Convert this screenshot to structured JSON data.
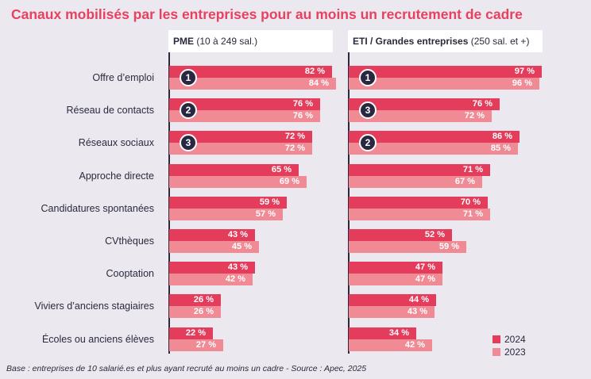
{
  "title": "Canaux mobilisés par les entreprises pour au moins un recrutement de cadre",
  "footnote": "Base : entreprises de 10 salarié.es et plus ayant recruté au moins un cadre  - Source : Apec, 2025",
  "colors": {
    "s2024": "#e43d5c",
    "s2023": "#f08b96",
    "rank": "#2a2840",
    "title": "#e8405f"
  },
  "chart_data": {
    "type": "bar",
    "orientation": "horizontal",
    "title": "Canaux mobilisés par les entreprises pour au moins un recrutement de cadre",
    "categories": [
      "Offre d’emploi",
      "Réseau de contacts",
      "Réseaux sociaux",
      "Approche directe",
      "Candidatures spontanées",
      "CVthèques",
      "Cooptation",
      "Viviers d’anciens stagiaires",
      "Écoles ou anciens élèves"
    ],
    "legend": [
      "2024",
      "2023"
    ],
    "legend_position": "bottom-right",
    "panels": [
      {
        "name": "PME",
        "subtitle": "(10 à 249 sal.)",
        "series": [
          {
            "name": "2024",
            "values": [
              82,
              76,
              72,
              65,
              59,
              43,
              43,
              26,
              22
            ]
          },
          {
            "name": "2023",
            "values": [
              84,
              76,
              72,
              69,
              57,
              45,
              42,
              26,
              27
            ]
          }
        ],
        "ranks": [
          "1",
          "2",
          "3",
          null,
          null,
          null,
          null,
          null,
          null
        ]
      },
      {
        "name": "ETI / Grandes entreprises",
        "subtitle": "(250 sal. et +)",
        "series": [
          {
            "name": "2024",
            "values": [
              97,
              76,
              86,
              71,
              70,
              52,
              47,
              44,
              34
            ]
          },
          {
            "name": "2023",
            "values": [
              96,
              72,
              85,
              67,
              71,
              59,
              47,
              43,
              42
            ]
          }
        ],
        "ranks": [
          "1",
          "3",
          "2",
          null,
          null,
          null,
          null,
          null,
          null
        ]
      }
    ]
  }
}
